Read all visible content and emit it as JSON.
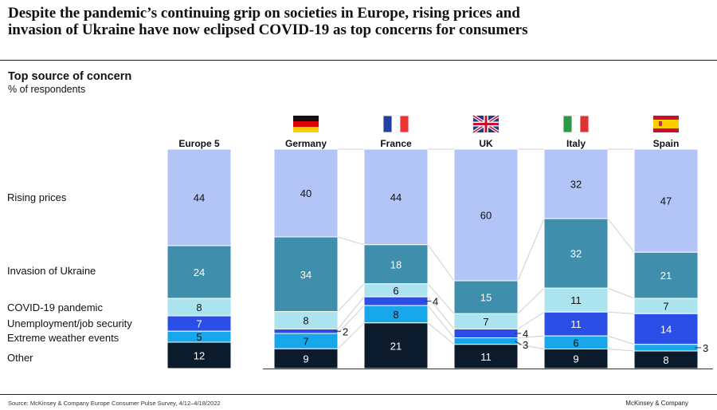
{
  "title": "Despite the pandemic’s continuing grip on societies in Europe, rising prices and invasion of Ukraine have now eclipsed COVID-19 as top concerns for consumers",
  "subtitle": "Top source of concern",
  "unit": "% of respondents",
  "source": "Source: McKinsey & Company Europe Consumer Pulse Survey, 4/12–4/18/2022",
  "brand": "McKinsey & Company",
  "chart_data": {
    "type": "bar",
    "stacked": true,
    "categories": [
      "Europe 5",
      "Germany",
      "France",
      "UK",
      "Italy",
      "Spain"
    ],
    "flags": [
      "",
      "germany-flag",
      "france-flag",
      "uk-flag",
      "italy-flag",
      "spain-flag"
    ],
    "series": [
      {
        "name": "Rising prices",
        "color": "#b3c4f6",
        "values": [
          44,
          40,
          44,
          60,
          32,
          47
        ]
      },
      {
        "name": "Invasion of Ukraine",
        "color": "#3f8eab",
        "values": [
          24,
          34,
          18,
          15,
          32,
          21
        ]
      },
      {
        "name": "COVID-19 pandemic",
        "color": "#abe3ee",
        "values": [
          8,
          8,
          6,
          7,
          11,
          7
        ]
      },
      {
        "name": "Unemployment/job security",
        "color": "#2b4fe6",
        "values": [
          7,
          2,
          4,
          4,
          11,
          14
        ]
      },
      {
        "name": "Extreme weather events",
        "color": "#18a6ea",
        "values": [
          5,
          7,
          8,
          3,
          6,
          3
        ]
      },
      {
        "name": "Other",
        "color": "#0b1b2b",
        "values": [
          12,
          9,
          21,
          11,
          9,
          8
        ]
      }
    ],
    "legend": "left"
  }
}
